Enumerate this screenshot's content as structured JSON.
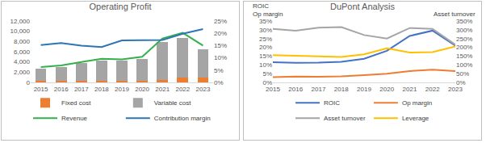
{
  "chart_data": [
    {
      "type": "bar",
      "title": "Operating Profit",
      "stacked": true,
      "legend": "bottom",
      "grid": false,
      "categories": [
        "2015",
        "2016",
        "2017",
        "2018",
        "2019",
        "2020",
        "2021",
        "2022",
        "2023"
      ],
      "ylim": [
        0,
        12000
      ],
      "yticks": [
        0,
        {
          "value": 2000,
          "label": "2,000"
        },
        {
          "value": 4000,
          "label": "4,000"
        },
        {
          "value": 6000,
          "label": "6,000"
        },
        {
          "value": 8000,
          "label": "8,000"
        },
        {
          "value": 10000,
          "label": "10,000"
        },
        {
          "value": 12000,
          "label": "12,000"
        }
      ],
      "y2lim": [
        0,
        25
      ],
      "y2ticks": [
        {
          "value": 0,
          "label": "0%"
        },
        {
          "value": 5,
          "label": "5%"
        },
        {
          "value": 10,
          "label": "10%"
        },
        {
          "value": 15,
          "label": "15%"
        },
        {
          "value": 20,
          "label": "20%"
        },
        {
          "value": 25,
          "label": "25%"
        }
      ],
      "series": [
        {
          "name": "Fixed cost",
          "type": "bar",
          "color": "#ED7D31",
          "values": [
            300,
            300,
            350,
            350,
            350,
            350,
            400,
            900,
            900
          ]
        },
        {
          "name": "Variable cost",
          "type": "bar",
          "color": "#A5A5A5",
          "values": [
            2400,
            2700,
            3400,
            3950,
            3850,
            4250,
            7500,
            7800,
            5600
          ]
        },
        {
          "name": "Revenue",
          "type": "line",
          "color": "#33B04A",
          "values": [
            3000,
            3300,
            4000,
            4600,
            4500,
            5000,
            8600,
            9700,
            7200
          ]
        },
        {
          "name": "Contribution margin",
          "type": "line",
          "color": "#2E75B6",
          "axis": "y2",
          "values": [
            15.2,
            16,
            15,
            14.4,
            17.1,
            17.1,
            17.3,
            19.8,
            21.7
          ]
        }
      ]
    },
    {
      "type": "line",
      "title": "DuPont Analysis",
      "legend": "bottom",
      "grid": false,
      "ylabel": "ROIC\nOp margin",
      "y2label": "Asset turnover",
      "categories": [
        "2015",
        "2016",
        "2017",
        "2018",
        "2019",
        "2020",
        "2021",
        "2022",
        "2023"
      ],
      "ylim": [
        0,
        35
      ],
      "yticks": [
        {
          "value": 0,
          "label": "0%"
        },
        {
          "value": 5,
          "label": "5%"
        },
        {
          "value": 10,
          "label": "10%"
        },
        {
          "value": 15,
          "label": "15%"
        },
        {
          "value": 20,
          "label": "20%"
        },
        {
          "value": 25,
          "label": "25%"
        },
        {
          "value": 30,
          "label": "30%"
        },
        {
          "value": 35,
          "label": "35%"
        }
      ],
      "y2lim": [
        0,
        350
      ],
      "y2ticks": [
        {
          "value": 0,
          "label": "0%"
        },
        {
          "value": 50,
          "label": "50%"
        },
        {
          "value": 100,
          "label": "100%"
        },
        {
          "value": 150,
          "label": "150%"
        },
        {
          "value": 200,
          "label": "200%"
        },
        {
          "value": 250,
          "label": "250%"
        },
        {
          "value": 300,
          "label": "300%"
        },
        {
          "value": 350,
          "label": "350%"
        }
      ],
      "series": [
        {
          "name": "ROIC",
          "type": "line",
          "color": "#4472C4",
          "values": [
            11.5,
            11.2,
            11.3,
            11.8,
            13.5,
            18,
            26.5,
            29.5,
            21
          ]
        },
        {
          "name": "Op margin",
          "type": "line",
          "color": "#ED7D31",
          "values": [
            3,
            3.3,
            3.2,
            3.5,
            4.2,
            5,
            6.5,
            7.2,
            6.5
          ]
        },
        {
          "name": "Asset turnover",
          "type": "line",
          "color": "#A5A5A5",
          "axis": "y2",
          "values": [
            305,
            295,
            312,
            315,
            270,
            250,
            310,
            305,
            215
          ]
        },
        {
          "name": "Leverage",
          "type": "line",
          "color": "#FFC000",
          "axis": "y2",
          "values": [
            155,
            150,
            148,
            145,
            160,
            195,
            170,
            173,
            205
          ]
        }
      ]
    }
  ]
}
